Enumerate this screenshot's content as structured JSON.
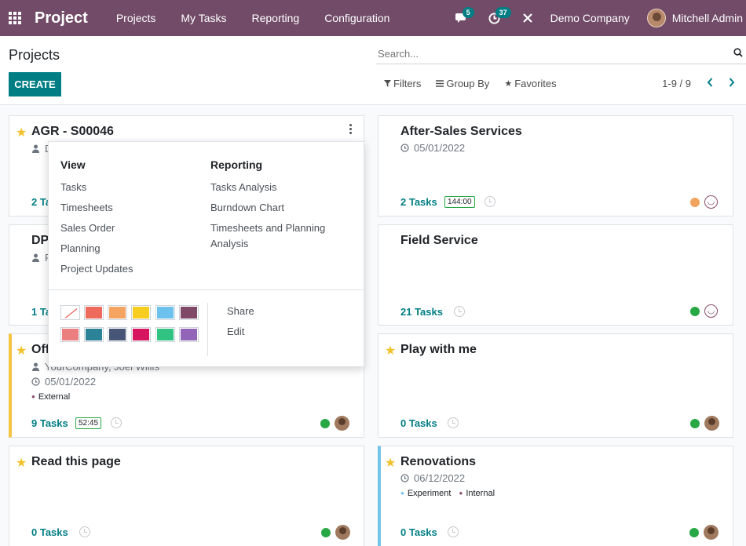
{
  "navbar": {
    "brand": "Project",
    "menu": [
      "Projects",
      "My Tasks",
      "Reporting",
      "Configuration"
    ],
    "messages_count": "5",
    "activities_count": "37",
    "company": "Demo Company",
    "user": "Mitchell Admin",
    "accent": "#714b67"
  },
  "control": {
    "title": "Projects",
    "create_label": "CREATE",
    "search_placeholder": "Search...",
    "filters_label": "Filters",
    "groupby_label": "Group By",
    "favorites_label": "Favorites",
    "pager": "1-9 / 9"
  },
  "cards": {
    "agr": {
      "title": "AGR - S00046",
      "meta_partial": "D",
      "tasks_partial": "2 Ta"
    },
    "after_sales": {
      "title": "After-Sales Services",
      "date": "05/01/2022",
      "tasks": "2 Tasks",
      "hours": "144:00"
    },
    "dp": {
      "title_partial": "DP",
      "meta_partial": "R",
      "tasks_partial": "1 Ta"
    },
    "field_service": {
      "title": "Field Service",
      "tasks": "21 Tasks"
    },
    "office": {
      "title_partial": "Off",
      "partner_partial": "YourCompany, Joel Willis",
      "date": "05/01/2022",
      "tag": "External",
      "tasks": "9 Tasks",
      "hours": "52:45"
    },
    "play": {
      "title": "Play with me",
      "tasks": "0 Tasks"
    },
    "read": {
      "title": "Read this page",
      "tasks": "0 Tasks"
    },
    "renovations": {
      "title": "Renovations",
      "date": "06/12/2022",
      "tags": [
        "Experiment",
        "Internal"
      ],
      "tasks": "0 Tasks"
    }
  },
  "dropdown": {
    "view_title": "View",
    "view_items": [
      "Tasks",
      "Timesheets",
      "Sales Order",
      "Planning",
      "Project Updates"
    ],
    "reporting_title": "Reporting",
    "reporting_items": [
      "Tasks Analysis",
      "Burndown Chart",
      "Timesheets and Planning Analysis"
    ],
    "actions": [
      "Share",
      "Edit"
    ],
    "colors_row1": [
      "none",
      "#ee6a5b",
      "#f4a460",
      "#f7cd1f",
      "#6cc1ed",
      "#814968"
    ],
    "colors_row2": [
      "#eb7e7f",
      "#2c8397",
      "#475577",
      "#d6145f",
      "#30c381",
      "#9365b8"
    ]
  }
}
